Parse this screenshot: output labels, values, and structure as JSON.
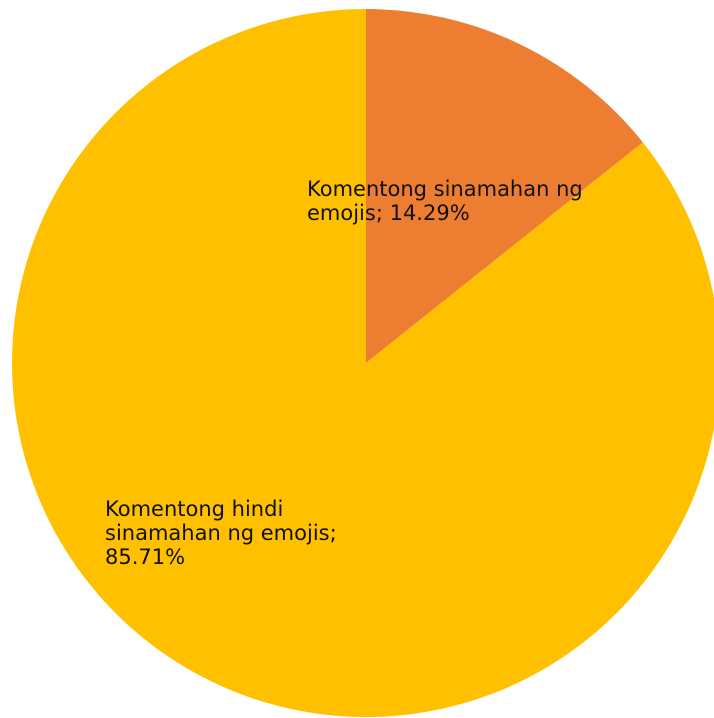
{
  "chart_data": {
    "type": "pie",
    "title": "",
    "slices": [
      {
        "label": "Komentong sinamahan ng emojis; 14.29%",
        "value": 14.29,
        "color": "#ED7D31"
      },
      {
        "label": "Komentong hindi sinamahan ng emojis; 85.71%",
        "value": 85.71,
        "color": "#FFC000"
      }
    ],
    "start_angle_deg": 0,
    "direction": "clockwise",
    "legend": "none"
  }
}
